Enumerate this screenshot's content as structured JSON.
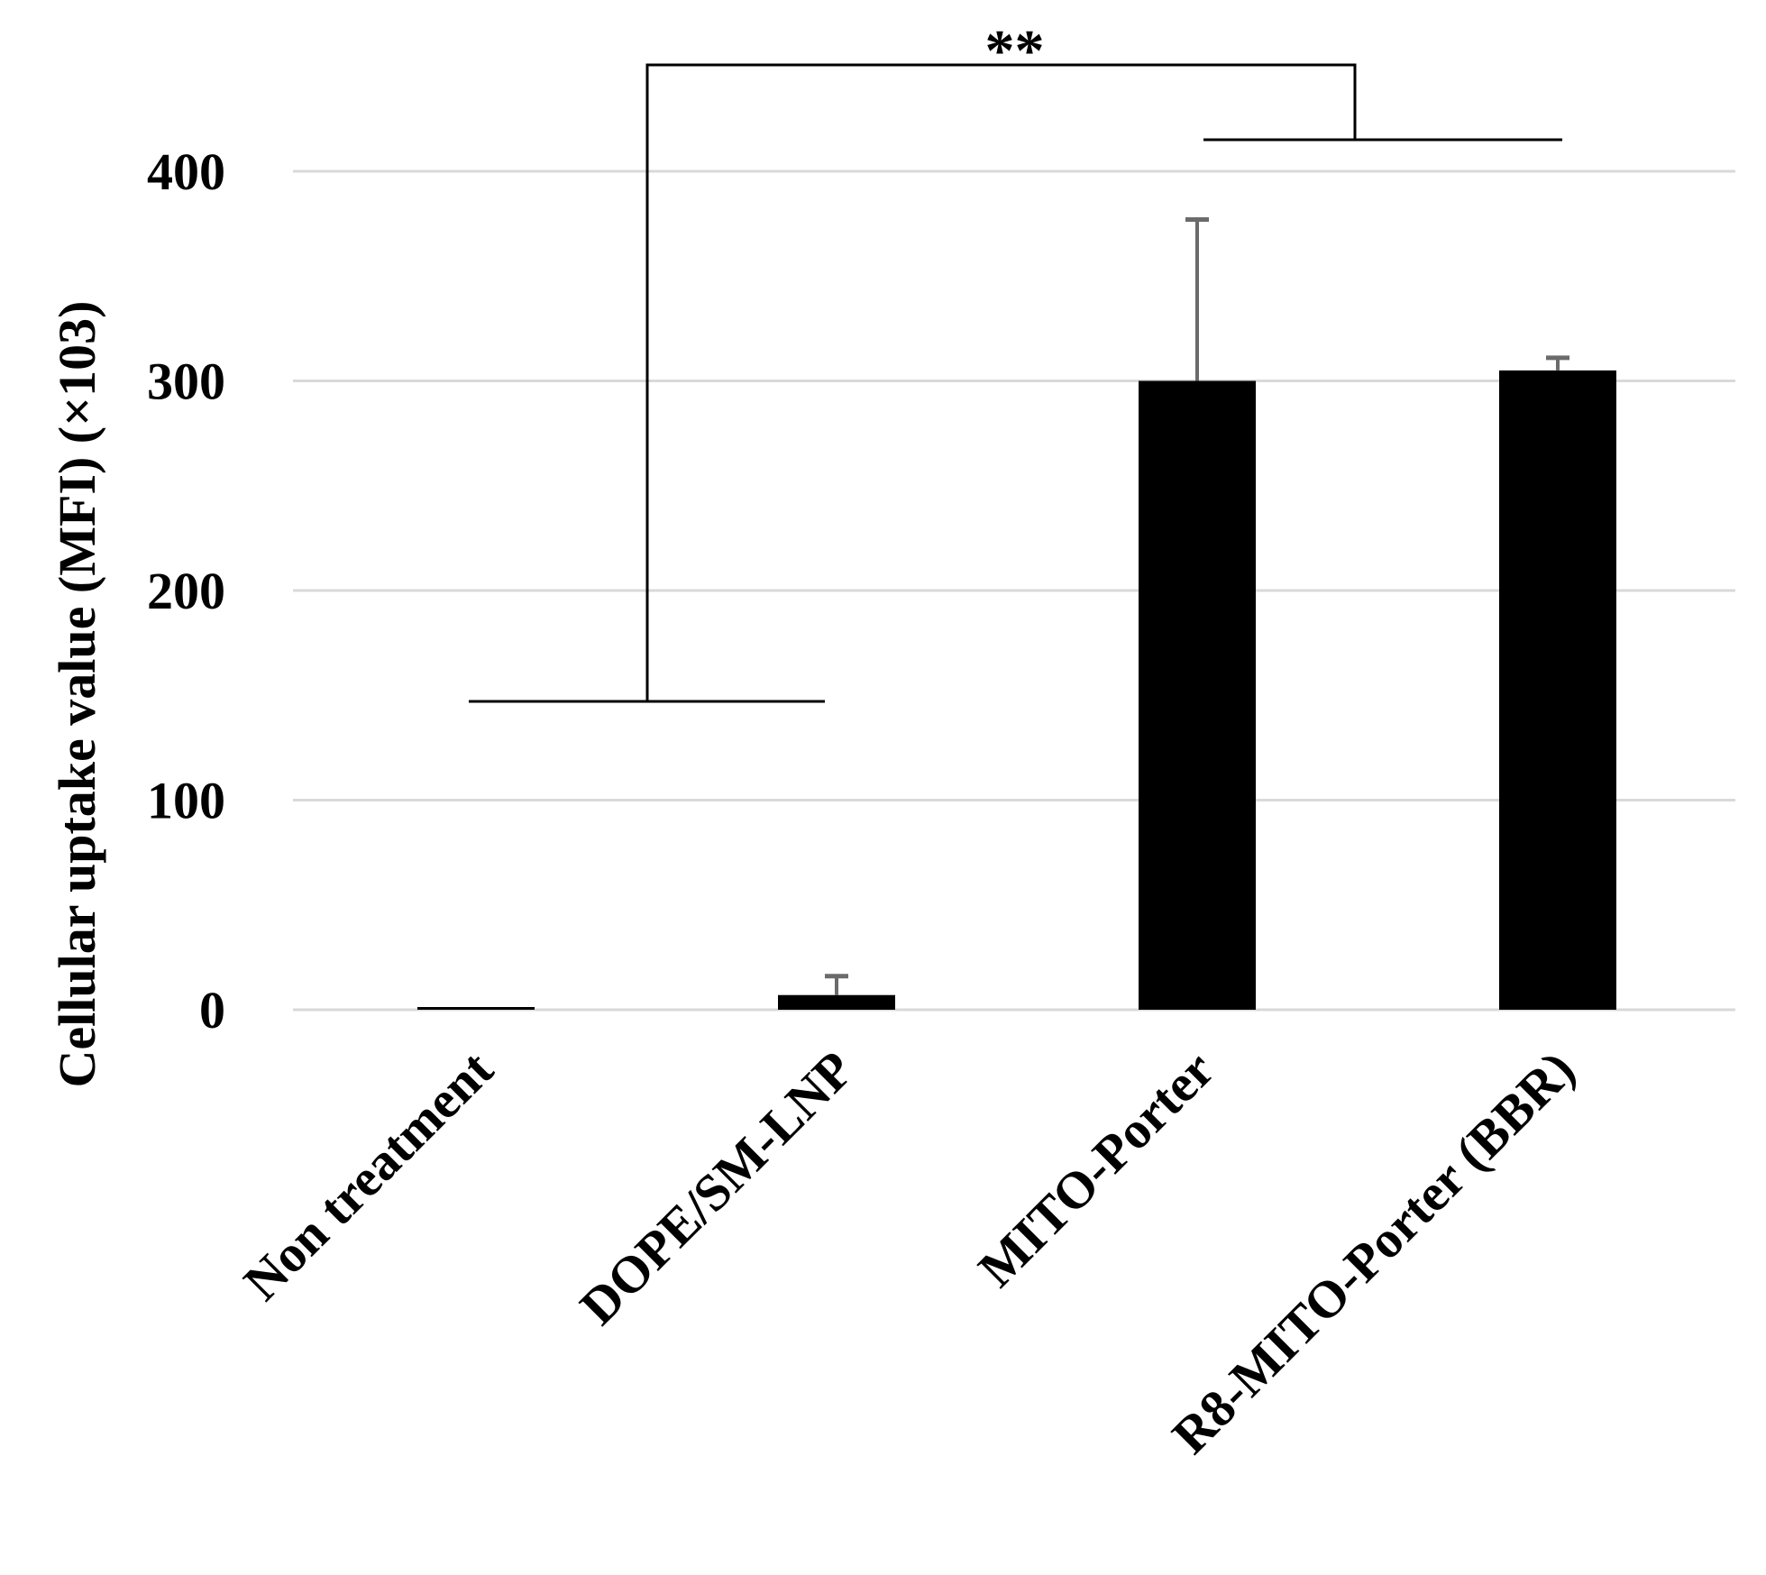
{
  "chart_data": {
    "type": "bar",
    "categories": [
      "Non treatment",
      "DOPE/SM-LNP",
      "MITO-Porter",
      "R8-MITO-Porter (BBR)"
    ],
    "values": [
      1,
      7,
      300,
      305
    ],
    "error_upper": [
      0,
      9,
      77,
      6
    ],
    "ylabel": "Cellular uptake value (MFI) (×103)",
    "ylim": [
      0,
      400
    ],
    "yticks": [
      0,
      100,
      200,
      300,
      400
    ],
    "grid": true,
    "bar_color": "#000000",
    "error_color": "#6b6b6b",
    "significance": {
      "label": "**",
      "left_group": [
        0,
        1
      ],
      "right_group": [
        2,
        3
      ]
    }
  }
}
